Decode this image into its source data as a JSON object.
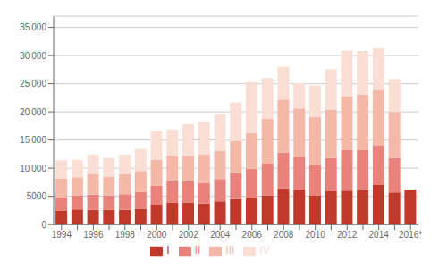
{
  "chart_data": {
    "type": "bar",
    "categories": [
      "1994",
      null,
      "1996",
      null,
      "1998",
      null,
      "2000",
      null,
      "2002",
      null,
      "2004",
      null,
      "2006",
      null,
      "2008",
      null,
      "2010",
      null,
      "2012",
      null,
      "2014",
      null,
      "2016*"
    ],
    "series": [
      {
        "name": "I",
        "color": "#c0392b",
        "values": [
          2400,
          2700,
          2600,
          2600,
          2600,
          2800,
          3500,
          3900,
          3900,
          3700,
          4100,
          4500,
          4800,
          5200,
          6400,
          6200,
          5100,
          5900,
          6000,
          6100,
          7000,
          5700,
          6200
        ]
      },
      {
        "name": "II",
        "color": "#e8827a",
        "values": [
          2400,
          2500,
          2700,
          2600,
          2800,
          3000,
          3400,
          3800,
          3800,
          3700,
          4000,
          4600,
          5100,
          5600,
          6400,
          5800,
          5400,
          5900,
          7200,
          7100,
          7000,
          6100,
          0
        ]
      },
      {
        "name": "III",
        "color": "#f4b8a8",
        "values": [
          3400,
          3200,
          3600,
          3300,
          3500,
          3700,
          4600,
          4600,
          4500,
          5000,
          5000,
          5700,
          6400,
          8000,
          9400,
          8600,
          8600,
          8600,
          9500,
          9900,
          9900,
          8200,
          0
        ]
      },
      {
        "name": "IV",
        "color": "#faded4",
        "values": [
          3200,
          3100,
          3500,
          3300,
          3500,
          3900,
          5100,
          4600,
          5600,
          5900,
          6400,
          6900,
          9000,
          7200,
          5800,
          4500,
          5600,
          7200,
          8200,
          7700,
          7400,
          5800,
          0
        ]
      }
    ],
    "ylim": [
      0,
      37000
    ],
    "yticks": [
      0,
      5000,
      {
        "value": 10000,
        "label": "10 000"
      },
      {
        "value": 15000,
        "label": "15 000"
      },
      {
        "value": 20000,
        "label": "20 000"
      },
      {
        "value": 25000,
        "label": "25 000"
      },
      {
        "value": 30000,
        "label": "30 000"
      },
      {
        "value": 35000,
        "label": "35 000"
      }
    ],
    "stacked": true,
    "grid": true,
    "legend": "bottom"
  }
}
